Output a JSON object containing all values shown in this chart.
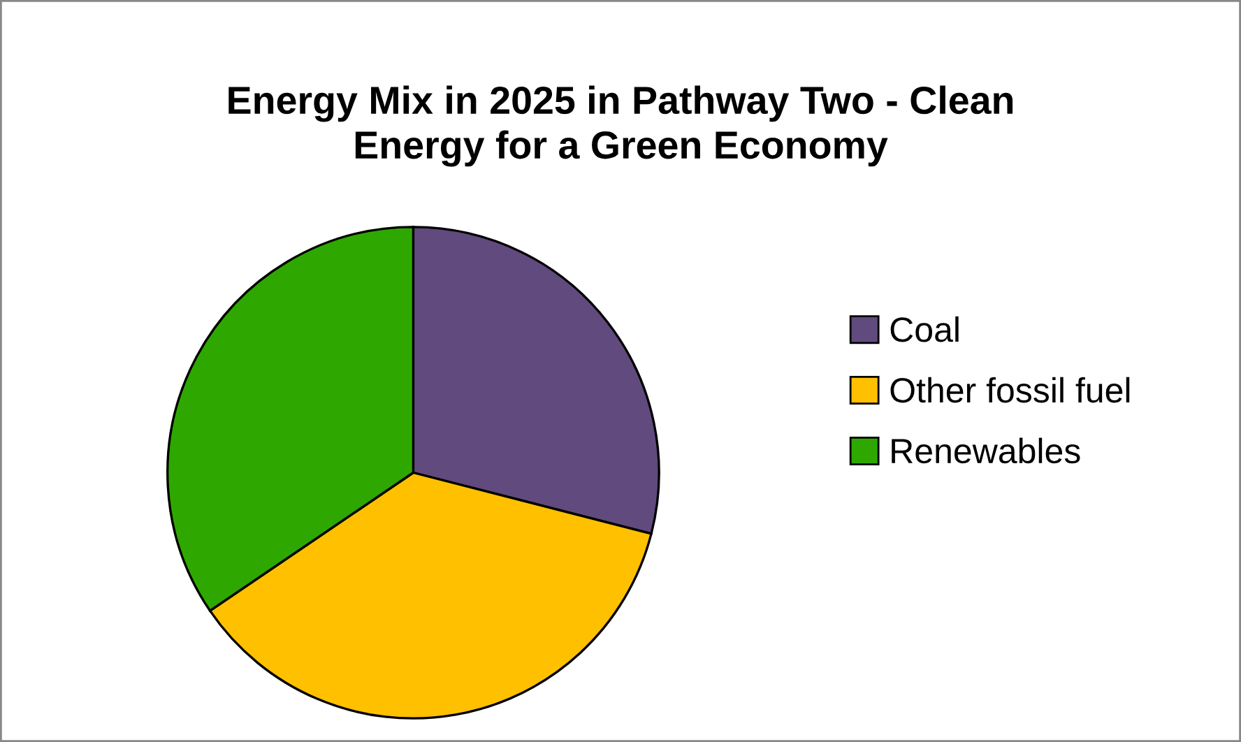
{
  "chart_data": {
    "type": "pie",
    "title": "Energy Mix in 2025 in Pathway Two - Clean\nEnergy for a Green Economy",
    "categories": [
      "Coal",
      "Other fossil fuel",
      "Renewables"
    ],
    "values": [
      29,
      36.5,
      34.5
    ],
    "colors": [
      "#614a7d",
      "#ffc000",
      "#2ea800"
    ],
    "legend": "right"
  }
}
